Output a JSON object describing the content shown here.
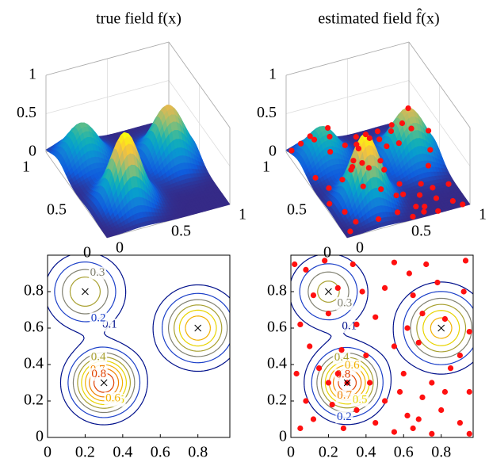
{
  "chart_data": [
    {
      "type": "surface",
      "title": "true field f(x)",
      "xlim": [
        0,
        1
      ],
      "ylim": [
        0,
        1
      ],
      "zlim": [
        0,
        1
      ],
      "xticks": [
        0,
        0.5,
        1
      ],
      "yticks": [
        0,
        0.5,
        1
      ],
      "zticks": [
        0,
        0.5,
        1
      ],
      "peaks": {
        "x": [
          0.2,
          0.3,
          0.8
        ],
        "y": [
          0.8,
          0.3,
          0.6
        ],
        "height": [
          0.5,
          0.9,
          0.7
        ],
        "width": [
          0.12,
          0.11,
          0.12
        ]
      }
    },
    {
      "type": "surface",
      "title": "estimated field f̂(x)",
      "xlim": [
        0,
        1
      ],
      "ylim": [
        0,
        1
      ],
      "zlim": [
        0,
        1
      ],
      "xticks": [
        0,
        0.5,
        1
      ],
      "yticks": [
        0,
        0.5,
        1
      ],
      "zticks": [
        0,
        0.5,
        1
      ],
      "peaks": {
        "x": [
          0.2,
          0.3,
          0.8
        ],
        "y": [
          0.8,
          0.3,
          0.6
        ],
        "height": [
          0.45,
          0.88,
          0.66
        ],
        "width": [
          0.12,
          0.11,
          0.13
        ]
      },
      "sample_color": "#ff1010"
    },
    {
      "type": "contour",
      "xlim": [
        0,
        0.97
      ],
      "ylim": [
        0,
        1
      ],
      "xticks": [
        0,
        0.2,
        0.4,
        0.6,
        0.8
      ],
      "yticks": [
        0,
        0.2,
        0.4,
        0.6,
        0.8
      ],
      "levels": [
        0.1,
        0.2,
        0.3,
        0.4,
        0.5,
        0.6,
        0.7,
        0.8,
        0.9
      ],
      "level_colors": [
        "#00108b",
        "#1c40c8",
        "#808070",
        "#a8a030",
        "#e8d400",
        "#f2b000",
        "#f08000",
        "#e04000",
        "#c00000"
      ],
      "peaks": {
        "x": [
          0.2,
          0.3,
          0.8
        ],
        "y": [
          0.8,
          0.3,
          0.6
        ],
        "height": [
          0.5,
          0.9,
          0.7
        ],
        "width": [
          0.12,
          0.11,
          0.12
        ]
      }
    },
    {
      "type": "contour",
      "xlim": [
        0,
        0.97
      ],
      "ylim": [
        0,
        1
      ],
      "xticks": [
        0,
        0.2,
        0.4,
        0.6,
        0.8
      ],
      "yticks": [
        0,
        0.2,
        0.4,
        0.6,
        0.8
      ],
      "levels": [
        0.1,
        0.2,
        0.3,
        0.4,
        0.5,
        0.6,
        0.7,
        0.8,
        0.9
      ],
      "level_colors": [
        "#00108b",
        "#1c40c8",
        "#808070",
        "#a8a030",
        "#e8d400",
        "#f2b000",
        "#f08000",
        "#e04000",
        "#c00000"
      ],
      "peaks": {
        "x": [
          0.2,
          0.3,
          0.8
        ],
        "y": [
          0.8,
          0.3,
          0.6
        ],
        "height": [
          0.45,
          0.88,
          0.66
        ],
        "width": [
          0.12,
          0.11,
          0.13
        ]
      },
      "sample_color": "#ff1010",
      "samples": {
        "x": [
          0.02,
          0.08,
          0.18,
          0.33,
          0.55,
          0.63,
          0.72,
          0.93,
          0.12,
          0.25,
          0.38,
          0.5,
          0.65,
          0.78,
          0.92,
          0.05,
          0.2,
          0.35,
          0.45,
          0.62,
          0.7,
          0.82,
          0.95,
          0.1,
          0.27,
          0.4,
          0.55,
          0.68,
          0.9,
          0.03,
          0.15,
          0.3,
          0.42,
          0.6,
          0.75,
          0.85,
          0.95,
          0.08,
          0.22,
          0.35,
          0.5,
          0.62,
          0.7,
          0.8,
          0.9,
          0.05,
          0.12,
          0.28,
          0.45,
          0.55,
          0.65,
          0.75,
          0.95,
          0.2,
          0.25,
          0.58,
          0.68,
          0.82
        ],
        "y": [
          0.95,
          0.92,
          0.97,
          0.95,
          0.96,
          0.9,
          0.95,
          0.97,
          0.78,
          0.82,
          0.8,
          0.82,
          0.78,
          0.85,
          0.8,
          0.62,
          0.68,
          0.62,
          0.66,
          0.6,
          0.68,
          0.65,
          0.58,
          0.5,
          0.48,
          0.45,
          0.5,
          0.52,
          0.45,
          0.35,
          0.38,
          0.3,
          0.3,
          0.35,
          0.3,
          0.38,
          0.25,
          0.2,
          0.18,
          0.15,
          0.2,
          0.12,
          0.22,
          0.15,
          0.08,
          0.05,
          0.1,
          0.05,
          0.08,
          0.03,
          0.05,
          0.02,
          0.02,
          0.3,
          0.35,
          0.25,
          0.1,
          0.25
        ]
      }
    }
  ]
}
